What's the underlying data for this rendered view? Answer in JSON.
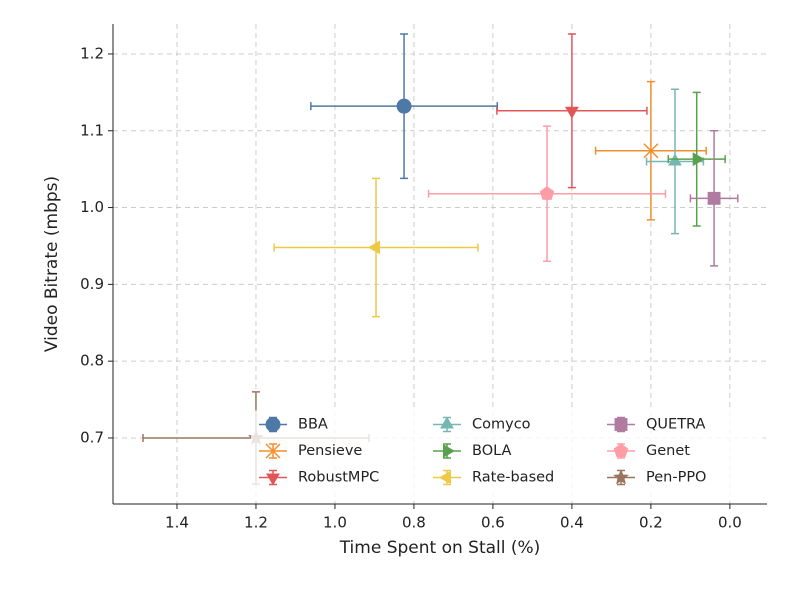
{
  "chart_data": {
    "type": "errorbar-scatter",
    "xlabel": "Time Spent on Stall (%)",
    "ylabel": "Video Bitrate (mbps)",
    "xlim": [
      1.562,
      -0.094
    ],
    "ylim": [
      0.614,
      1.239
    ],
    "xticks": [
      1.4,
      1.2,
      {
        "value": 1,
        "label": "1.0"
      },
      0.8,
      0.6,
      0.4,
      0.2,
      {
        "value": 0,
        "label": "0.0"
      }
    ],
    "yticks": [
      0.7,
      0.8,
      0.9,
      {
        "value": 1,
        "label": "1.0"
      },
      1.1,
      1.2
    ],
    "grid": true,
    "legend": "lower right",
    "legend_columns": 3,
    "series": [
      {
        "name": "BBA",
        "color": "#4e79a7",
        "marker": "circle",
        "x": [
          0.825
        ],
        "y": [
          1.132
        ],
        "xerr": [
          0.236
        ],
        "yerr": [
          0.094
        ]
      },
      {
        "name": "Pensieve",
        "color": "#f28e2b",
        "marker": "x",
        "x": [
          0.2
        ],
        "y": [
          1.074
        ],
        "xerr": [
          0.14
        ],
        "yerr": [
          0.09
        ]
      },
      {
        "name": "RobustMPC",
        "color": "#e15759",
        "marker": "triangle-down",
        "x": [
          0.4
        ],
        "y": [
          1.126
        ],
        "xerr": [
          0.19
        ],
        "yerr": [
          0.1
        ]
      },
      {
        "name": "Comyco",
        "color": "#76b7b2",
        "marker": "triangle-up",
        "x": [
          0.139
        ],
        "y": [
          1.06
        ],
        "xerr": [
          0.072
        ],
        "yerr": [
          0.094
        ]
      },
      {
        "name": "BOLA",
        "color": "#59a14f",
        "marker": "triangle-right",
        "x": [
          0.084
        ],
        "y": [
          1.063
        ],
        "xerr": [
          0.072
        ],
        "yerr": [
          0.087
        ]
      },
      {
        "name": "Rate-based",
        "color": "#edc948",
        "marker": "triangle-left",
        "x": [
          0.896
        ],
        "y": [
          0.948
        ],
        "xerr": [
          0.258
        ],
        "yerr": [
          0.09
        ]
      },
      {
        "name": "QUETRA",
        "color": "#b07aa1",
        "marker": "square",
        "x": [
          0.04
        ],
        "y": [
          1.012
        ],
        "xerr": [
          0.06
        ],
        "yerr": [
          0.088
        ]
      },
      {
        "name": "Genet",
        "color": "#ff9da7",
        "marker": "pentagon",
        "x": [
          0.463
        ],
        "y": [
          1.018
        ],
        "xerr": [
          0.3
        ],
        "yerr": [
          0.088
        ]
      },
      {
        "name": "Pen-PPO",
        "color": "#9c755f",
        "marker": "star",
        "x": [
          1.2
        ],
        "y": [
          0.7
        ],
        "xerr": [
          0.286
        ],
        "yerr": [
          0.06
        ]
      }
    ]
  }
}
